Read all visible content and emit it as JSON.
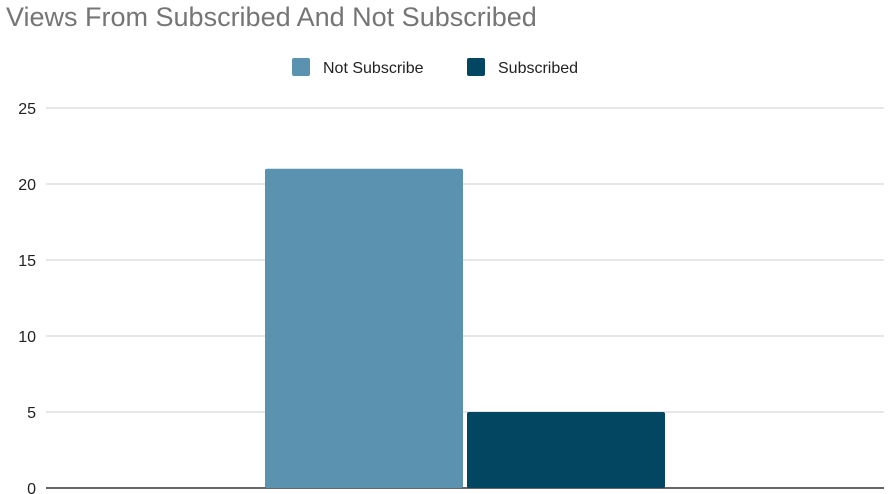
{
  "chart_data": {
    "type": "bar",
    "title": "Views From Subscribed And Not Subscribed",
    "categories": [
      ""
    ],
    "series": [
      {
        "name": "Not Subscribe",
        "values": [
          21
        ],
        "color": "#5b92b0"
      },
      {
        "name": "Subscribed",
        "values": [
          5
        ],
        "color": "#024661"
      }
    ],
    "ylim": [
      0,
      25
    ],
    "yticks": [
      0,
      5,
      10,
      15,
      20,
      25
    ],
    "xlabel": "",
    "ylabel": "",
    "grid": true,
    "legend_position": "top-center"
  }
}
